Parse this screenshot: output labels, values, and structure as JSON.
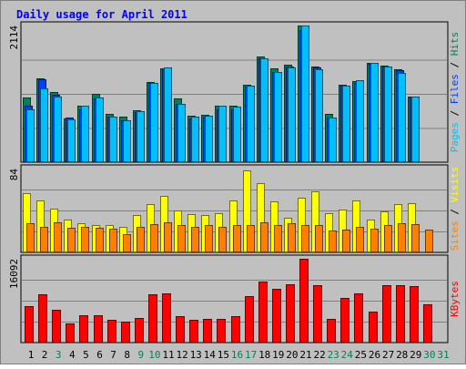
{
  "chart_data": {
    "type": "bar",
    "title": "Daily usage for April 2011",
    "days": [
      "1",
      "2",
      "3",
      "4",
      "5",
      "6",
      "7",
      "8",
      "9",
      "10",
      "11",
      "12",
      "13",
      "14",
      "15",
      "16",
      "17",
      "18",
      "19",
      "20",
      "21",
      "22",
      "23",
      "24",
      "25",
      "26",
      "27",
      "28",
      "29",
      "30",
      "31"
    ],
    "weekend_days": [
      "3",
      "9",
      "10",
      "16",
      "17",
      "23",
      "24",
      "30",
      "31"
    ],
    "panels": [
      {
        "id": "top",
        "max_label": "2114",
        "ylim": [
          0,
          2114
        ],
        "axis_labels": [
          "Pages",
          "Files",
          "Hits"
        ],
        "series": [
          {
            "name": "Hits",
            "color": "#00805c",
            "values": [
              1000,
              1300,
              1080,
              680,
              880,
              1050,
              740,
              710,
              800,
              1240,
              1450,
              990,
              720,
              730,
              880,
              880,
              1200,
              1640,
              1450,
              1510,
              2114,
              1480,
              740,
              1200,
              1250,
              1540,
              1500,
              1440,
              1020,
              null,
              null
            ]
          },
          {
            "name": "Files",
            "color": "#0040ff",
            "values": [
              880,
              1280,
              1040,
              690,
              820,
              980,
              700,
              650,
              780,
              1230,
              1450,
              900,
              680,
              700,
              820,
              820,
              1170,
              1600,
              1400,
              1480,
              2050,
              1460,
              690,
              1180,
              1230,
              1520,
              1480,
              1420,
              1000,
              null,
              null
            ]
          },
          {
            "name": "Pages",
            "color": "#00c0ff",
            "values": [
              820,
              1140,
              1020,
              660,
              880,
              1000,
              700,
              650,
              790,
              1230,
              1460,
              900,
              700,
              720,
              870,
              860,
              1190,
              1600,
              1400,
              1470,
              2114,
              1440,
              690,
              1180,
              1270,
              1530,
              1480,
              1380,
              1010,
              null,
              null
            ]
          }
        ]
      },
      {
        "id": "middle",
        "max_label": "84",
        "ylim": [
          0,
          84
        ],
        "axis_labels": [
          "Sites",
          "Visits"
        ],
        "series": [
          {
            "name": "Visits",
            "color": "#ffff00",
            "values": [
              59,
              52,
              44,
              33,
              29,
              27,
              27,
              26,
              37,
              48,
              57,
              42,
              38,
              37,
              39,
              52,
              82,
              69,
              51,
              35,
              55,
              61,
              39,
              43,
              52,
              33,
              41,
              48,
              49,
              null,
              null
            ]
          },
          {
            "name": "Sites",
            "color": "#ff8000",
            "values": [
              29,
              26,
              30,
              25,
              26,
              25,
              24,
              18,
              26,
              28,
              30,
              27,
              26,
              27,
              26,
              27,
              27,
              30,
              27,
              29,
              27,
              27,
              22,
              23,
              26,
              24,
              27,
              29,
              28,
              23,
              null
            ]
          }
        ]
      },
      {
        "id": "bottom",
        "max_label": "16092",
        "ylim": [
          0,
          16092
        ],
        "axis_labels": [
          "KBytes"
        ],
        "series": [
          {
            "name": "KBytes",
            "color": "#ff0000",
            "values": [
              7000,
              9200,
              6300,
              3700,
              5200,
              5200,
              4400,
              4100,
              4800,
              9300,
              9500,
              5100,
              4400,
              4500,
              4600,
              5100,
              9000,
              11800,
              10300,
              11200,
              16092,
              11000,
              4500,
              8500,
              9500,
              6000,
              11000,
              11000,
              10800,
              7300,
              null
            ]
          }
        ]
      }
    ],
    "colors": {
      "outer_bg": "#c0c0c0",
      "plot_bg": "#c0c0c0",
      "title": "#0000ff",
      "day_normal": "#000000",
      "day_weekend": "#00805c"
    }
  }
}
